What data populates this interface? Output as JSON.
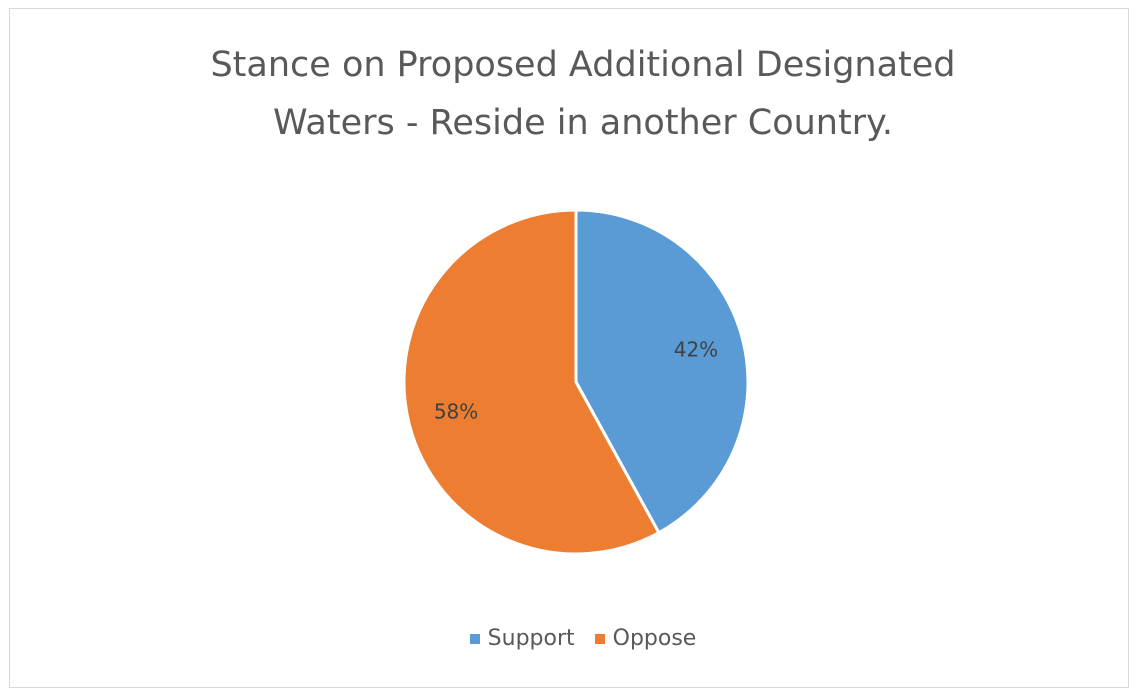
{
  "chart_data": {
    "type": "pie",
    "title_lines": [
      "Stance on Proposed Additional Designated",
      "Waters - Reside in another Country."
    ],
    "slices": [
      {
        "name": "Support",
        "value": 42,
        "label": "42%",
        "color": "#5b9bd5"
      },
      {
        "name": "Oppose",
        "value": 58,
        "label": "58%",
        "color": "#ed7d31"
      }
    ],
    "legend_position": "bottom"
  }
}
